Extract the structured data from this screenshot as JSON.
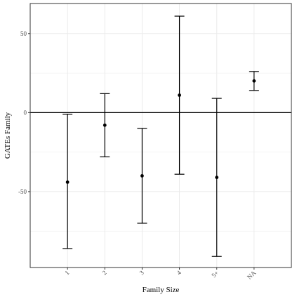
{
  "chart_data": {
    "type": "errorbar",
    "title": "",
    "xlabel": "Family Size",
    "ylabel": "GATEs Family",
    "categories": [
      "1",
      "2",
      "3",
      "4",
      "5+",
      "NA"
    ],
    "estimates": [
      -44,
      -8,
      -40,
      11,
      -41,
      20
    ],
    "lower": [
      -86,
      -28,
      -70,
      -39,
      -91,
      14
    ],
    "upper": [
      -1,
      12,
      -10,
      61,
      9,
      26
    ],
    "yticks": [
      -50,
      0,
      50
    ],
    "ylim": [
      -98,
      69
    ],
    "reference_line": 0,
    "grid": true,
    "x_tick_rotation": -45,
    "colors": {
      "background": "#ffffff",
      "grid": "#ebebeb",
      "marks": "#000000",
      "frame": "#333333"
    }
  }
}
